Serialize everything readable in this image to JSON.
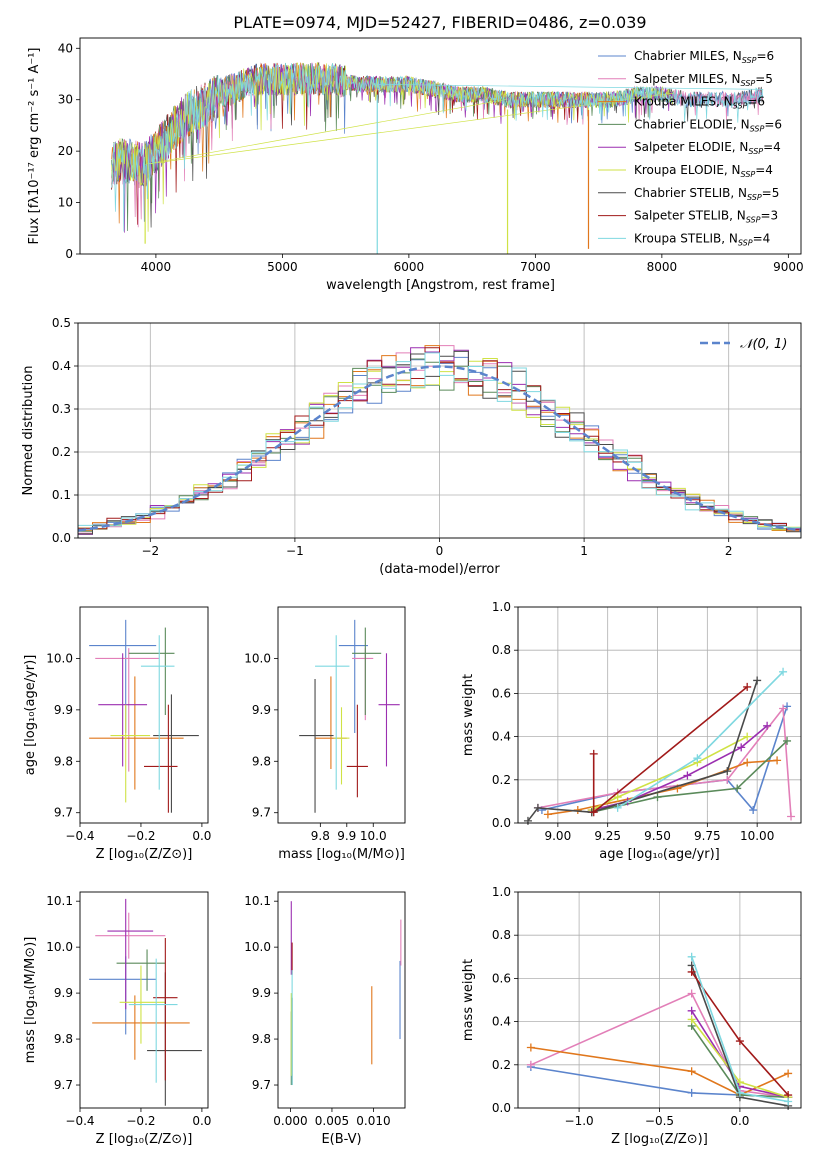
{
  "title": "PLATE=0974, MJD=52427, FIBERID=0486, z=0.039",
  "colors": [
    "#5b84cc",
    "#e27fb8",
    "#e0771c",
    "#5a8a5a",
    "#9b2fb0",
    "#cfe245",
    "#4a4a4a",
    "#a11a1a",
    "#7fd8e0"
  ],
  "legend_series": [
    {
      "pre": "Chabrier MILES, N",
      "sub": "SSP",
      "post": "=6"
    },
    {
      "pre": "Salpeter MILES, N",
      "sub": "SSP",
      "post": "=5"
    },
    {
      "pre": "Kroupa MILES, N",
      "sub": "SSP",
      "post": "=6"
    },
    {
      "pre": "Chabrier ELODIE, N",
      "sub": "SSP",
      "post": "=6"
    },
    {
      "pre": "Salpeter ELODIE, N",
      "sub": "SSP",
      "post": "=4"
    },
    {
      "pre": "Kroupa ELODIE, N",
      "sub": "SSP",
      "post": "=4"
    },
    {
      "pre": "Chabrier STELIB, N",
      "sub": "SSP",
      "post": "=5"
    },
    {
      "pre": "Salpeter STELIB, N",
      "sub": "SSP",
      "post": "=3"
    },
    {
      "pre": "Kroupa STELIB, N",
      "sub": "SSP",
      "post": "=4"
    }
  ],
  "chart_data": [
    {
      "id": "spectrum",
      "type": "line",
      "xlabel": "wavelength [Angstrom, rest frame]",
      "ylabel": "Flux [fλ10⁻¹⁷ erg cm⁻² s⁻¹ A⁻¹]",
      "xlim": [
        3400,
        9100
      ],
      "ylim": [
        0,
        42
      ],
      "xticks": [
        4000,
        5000,
        6000,
        7000,
        8000,
        9000
      ],
      "yticks": [
        0,
        10,
        20,
        30,
        40
      ],
      "continuum_x": [
        3650,
        3700,
        3800,
        3900,
        4000,
        4100,
        4200,
        4300,
        4400,
        4500,
        4600,
        4700,
        4800,
        4900,
        5000,
        5200,
        5400,
        5600,
        5800,
        6000,
        6200,
        6400,
        6600,
        6800,
        7000,
        7200,
        7400,
        7600,
        7800,
        8000,
        8200,
        8400,
        8600,
        8800
      ],
      "continuum_y": [
        17,
        18,
        18,
        17,
        20,
        23,
        26,
        28,
        29,
        31,
        32,
        33,
        34,
        34,
        34,
        34,
        34,
        33,
        33,
        33,
        32,
        31,
        31,
        30,
        30,
        30,
        30,
        30,
        31,
        31,
        30,
        30,
        30,
        31
      ],
      "series_end_x": [
        8800,
        8800,
        7420,
        8100,
        8100,
        8100,
        8800,
        7420,
        8800
      ],
      "dips": [
        {
          "x": 3915,
          "y": 2,
          "series": 5
        },
        {
          "x": 5750,
          "y": 0,
          "series": 8
        },
        {
          "x": 6780,
          "y": 0,
          "series": 5
        },
        {
          "x": 7420,
          "y": 1,
          "series": 2
        }
      ]
    },
    {
      "id": "residuals",
      "type": "histogram",
      "xlabel": "(data-model)/error",
      "ylabel": "Normed distribution",
      "xlim": [
        -2.5,
        2.5
      ],
      "ylim": [
        0,
        0.5
      ],
      "xticks": [
        -2,
        -1,
        0,
        1,
        2
      ],
      "yticks": [
        0,
        0.1,
        0.2,
        0.3,
        0.4,
        0.5
      ],
      "bin_width": 0.1,
      "gaussian_label": "𝒩(0, 1)",
      "gaussian_color": "#5b84cc"
    },
    {
      "id": "age-vs-Z",
      "type": "errorbar",
      "xlabel": "Z [log₁₀(Z/Z⊙)]",
      "ylabel": "age  [log₁₀(age/yr)]",
      "xlim": [
        -0.4,
        0.02
      ],
      "ylim": [
        9.68,
        10.1
      ],
      "xticks": [
        -0.4,
        -0.2,
        0.0
      ],
      "yticks": [
        9.7,
        9.8,
        9.9,
        10.0
      ],
      "points": [
        {
          "x": -0.25,
          "y": 10.025,
          "xerr": [
            0.12,
            0.1
          ],
          "yerr": [
            0.17,
            0.05
          ],
          "series": 0
        },
        {
          "x": -0.24,
          "y": 10.0,
          "xerr": [
            0.11,
            0.1
          ],
          "yerr": [
            0.22,
            0.02
          ],
          "series": 1
        },
        {
          "x": -0.22,
          "y": 9.845,
          "xerr": [
            0.15,
            0.16
          ],
          "yerr": [
            0.1,
            0.12
          ],
          "series": 2
        },
        {
          "x": -0.12,
          "y": 10.01,
          "xerr": [
            0.12,
            0.03
          ],
          "yerr": [
            0.12,
            0.05
          ],
          "series": 3
        },
        {
          "x": -0.26,
          "y": 9.91,
          "xerr": [
            0.08,
            0.08
          ],
          "yerr": [
            0.12,
            0.1
          ],
          "series": 4
        },
        {
          "x": -0.25,
          "y": 9.85,
          "xerr": [
            0.05,
            0.08
          ],
          "yerr": [
            0.13,
            0.06
          ],
          "series": 5
        },
        {
          "x": -0.1,
          "y": 9.85,
          "xerr": [
            0.06,
            0.09
          ],
          "yerr": [
            0.15,
            0.08
          ],
          "series": 6
        },
        {
          "x": -0.11,
          "y": 9.79,
          "xerr": [
            0.08,
            0.03
          ],
          "yerr": [
            0.09,
            0.12
          ],
          "series": 7
        },
        {
          "x": -0.14,
          "y": 9.985,
          "xerr": [
            0.06,
            0.05
          ],
          "yerr": [
            0.24,
            0.06
          ],
          "series": 8
        }
      ]
    },
    {
      "id": "age-vs-mass",
      "type": "errorbar",
      "xlabel": "mass [log₁₀(M/M⊙)]",
      "xlim": [
        9.64,
        10.12
      ],
      "ylim": [
        9.68,
        10.1
      ],
      "xticks": [
        9.8,
        9.9,
        10.0
      ],
      "yticks": [
        9.7,
        9.8,
        9.9,
        10.0
      ],
      "points": [
        {
          "x": 9.93,
          "y": 10.025,
          "xerr": [
            0.06,
            0.05
          ],
          "yerr": [
            0.17,
            0.05
          ],
          "series": 0
        },
        {
          "x": 9.97,
          "y": 10.0,
          "xerr": [
            0.05,
            0.03
          ],
          "yerr": [
            0.12,
            0.02
          ],
          "series": 1
        },
        {
          "x": 9.84,
          "y": 9.845,
          "xerr": [
            0.06,
            0.06
          ],
          "yerr": [
            0.06,
            0.12
          ],
          "series": 2
        },
        {
          "x": 9.97,
          "y": 10.01,
          "xerr": [
            0.05,
            0.06
          ],
          "yerr": [
            0.12,
            0.05
          ],
          "series": 3
        },
        {
          "x": 10.05,
          "y": 9.91,
          "xerr": [
            0.03,
            0.05
          ],
          "yerr": [
            0.12,
            0.1
          ],
          "series": 4
        },
        {
          "x": 9.88,
          "y": 9.845,
          "xerr": [
            0.03,
            0.03
          ],
          "yerr": [
            0.09,
            0.06
          ],
          "series": 5
        },
        {
          "x": 9.78,
          "y": 9.85,
          "xerr": [
            0.06,
            0.07
          ],
          "yerr": [
            0.15,
            0.11
          ],
          "series": 6
        },
        {
          "x": 9.94,
          "y": 9.79,
          "xerr": [
            0.04,
            0.04
          ],
          "yerr": [
            0.06,
            0.12
          ],
          "series": 7
        },
        {
          "x": 9.86,
          "y": 9.985,
          "xerr": [
            0.08,
            0.05
          ],
          "yerr": [
            0.24,
            0.06
          ],
          "series": 8
        }
      ]
    },
    {
      "id": "weight-vs-age",
      "type": "line",
      "xlabel": "age  [log₁₀(age/yr)]",
      "ylabel": "mass weight",
      "xlim": [
        8.8,
        10.22
      ],
      "ylim": [
        0,
        1
      ],
      "xticks": [
        9.0,
        9.25,
        9.5,
        9.75,
        10.0
      ],
      "yticks": [
        0.0,
        0.2,
        0.4,
        0.6,
        0.8,
        1.0
      ],
      "series": [
        {
          "series": 0,
          "x": [
            8.92,
            9.3,
            9.85,
            9.98,
            10.15
          ],
          "y": [
            0.06,
            0.14,
            0.2,
            0.06,
            0.54
          ]
        },
        {
          "series": 1,
          "x": [
            8.9,
            9.3,
            9.85,
            10.13,
            10.17
          ],
          "y": [
            0.07,
            0.14,
            0.2,
            0.53,
            0.03
          ]
        },
        {
          "series": 2,
          "x": [
            8.95,
            9.1,
            9.6,
            9.95,
            10.1
          ],
          "y": [
            0.04,
            0.06,
            0.16,
            0.28,
            0.29
          ]
        },
        {
          "series": 3,
          "x": [
            9.17,
            9.5,
            9.9,
            10.15
          ],
          "y": [
            0.05,
            0.12,
            0.16,
            0.38
          ]
        },
        {
          "series": 4,
          "x": [
            9.17,
            9.35,
            9.65,
            9.92,
            10.05
          ],
          "y": [
            0.06,
            0.1,
            0.22,
            0.35,
            0.45
          ]
        },
        {
          "series": 5,
          "x": [
            9.17,
            9.3,
            9.7,
            9.95
          ],
          "y": [
            0.06,
            0.12,
            0.28,
            0.4
          ]
        },
        {
          "series": 6,
          "x": [
            8.85,
            8.9,
            9.17,
            9.85,
            10.0
          ],
          "y": [
            0.01,
            0.07,
            0.05,
            0.24,
            0.66
          ]
        },
        {
          "series": 7,
          "x": [
            9.18,
            9.18,
            9.95
          ],
          "y": [
            0.32,
            0.05,
            0.63
          ]
        },
        {
          "series": 8,
          "x": [
            9.3,
            9.7,
            10.13
          ],
          "y": [
            0.07,
            0.3,
            0.7
          ]
        }
      ]
    },
    {
      "id": "mass-vs-Z",
      "type": "errorbar",
      "xlabel": "Z [log₁₀(Z/Z⊙)]",
      "ylabel": "mass [log₁₀(M/M⊙)]",
      "xlim": [
        -0.4,
        0.02
      ],
      "ylim": [
        9.65,
        10.12
      ],
      "xticks": [
        -0.4,
        -0.2,
        0.0
      ],
      "yticks": [
        9.7,
        9.8,
        9.9,
        10.0,
        10.1
      ],
      "points": [
        {
          "x": -0.25,
          "y": 9.93,
          "xerr": [
            0.12,
            0.1
          ],
          "yerr": [
            0.12,
            0.05
          ],
          "series": 0
        },
        {
          "x": -0.24,
          "y": 10.025,
          "xerr": [
            0.11,
            0.12
          ],
          "yerr": [
            0.05,
            0.05
          ],
          "series": 1
        },
        {
          "x": -0.22,
          "y": 9.835,
          "xerr": [
            0.14,
            0.18
          ],
          "yerr": [
            0.08,
            0.06
          ],
          "series": 2
        },
        {
          "x": -0.18,
          "y": 9.965,
          "xerr": [
            0.1,
            0.06
          ],
          "yerr": [
            0.06,
            0.03
          ],
          "series": 3
        },
        {
          "x": -0.25,
          "y": 10.035,
          "xerr": [
            0.06,
            0.09
          ],
          "yerr": [
            0.17,
            0.07
          ],
          "series": 4
        },
        {
          "x": -0.2,
          "y": 9.88,
          "xerr": [
            0.07,
            0.08
          ],
          "yerr": [
            0.09,
            0.08
          ],
          "series": 5
        },
        {
          "x": -0.12,
          "y": 9.775,
          "xerr": [
            0.06,
            0.12
          ],
          "yerr": [
            0.12,
            0.17
          ],
          "series": 6
        },
        {
          "x": -0.12,
          "y": 9.89,
          "xerr": [
            0.04,
            0.04
          ],
          "yerr": [
            0.18,
            0.13
          ],
          "series": 7
        },
        {
          "x": -0.15,
          "y": 9.875,
          "xerr": [
            0.09,
            0.07
          ],
          "yerr": [
            0.17,
            0.1
          ],
          "series": 8
        }
      ]
    },
    {
      "id": "mass-vs-ebv",
      "type": "errorbar",
      "xlabel": "E(B-V)",
      "xlim": [
        -0.0015,
        0.0138
      ],
      "ylim": [
        9.65,
        10.12
      ],
      "xticks": [
        0.0,
        0.005,
        0.01
      ],
      "yticks": [
        9.7,
        9.8,
        9.9,
        10.0,
        10.1
      ],
      "points": [
        {
          "x": 0.0132,
          "y": 9.89,
          "xerr": [
            0,
            0
          ],
          "yerr": [
            0.09,
            0.08
          ],
          "series": 0
        },
        {
          "x": 0.0133,
          "y": 10.0,
          "xerr": [
            0,
            0
          ],
          "yerr": [
            0.04,
            0.06
          ],
          "series": 1
        },
        {
          "x": 0.0098,
          "y": 9.835,
          "xerr": [
            0,
            0
          ],
          "yerr": [
            0.09,
            0.08
          ],
          "series": 2
        },
        {
          "x": 0.0001,
          "y": 9.8,
          "xerr": [
            0,
            0
          ],
          "yerr": [
            0.1,
            0.06
          ],
          "series": 3
        },
        {
          "x": 0.0001,
          "y": 10.02,
          "xerr": [
            0,
            0
          ],
          "yerr": [
            0.08,
            0.08
          ],
          "series": 4
        },
        {
          "x": 0.0001,
          "y": 9.8,
          "xerr": [
            0,
            0
          ],
          "yerr": [
            0.08,
            0.1
          ],
          "series": 5
        },
        {
          "x": 0.0002,
          "y": 9.82,
          "xerr": [
            0,
            0
          ],
          "yerr": [
            0.12,
            0.07
          ],
          "series": 6
        },
        {
          "x": 0.0002,
          "y": 9.98,
          "xerr": [
            0,
            0
          ],
          "yerr": [
            0.04,
            0.03
          ],
          "series": 7
        },
        {
          "x": 0.0002,
          "y": 9.86,
          "xerr": [
            0,
            0
          ],
          "yerr": [
            0.16,
            0.09
          ],
          "series": 8
        }
      ]
    },
    {
      "id": "weight-vs-Z",
      "type": "line",
      "xlabel": "Z [log₁₀(Z/Z⊙)]",
      "ylabel": "mass weight",
      "xlim": [
        -1.38,
        0.38
      ],
      "ylim": [
        0,
        1
      ],
      "xticks": [
        -1.0,
        -0.5,
        0.0
      ],
      "yticks": [
        0.0,
        0.2,
        0.4,
        0.6,
        0.8,
        1.0
      ],
      "series": [
        {
          "series": 0,
          "x": [
            -1.3,
            -0.3,
            0.0,
            0.3
          ],
          "y": [
            0.19,
            0.07,
            0.06,
            0.05
          ]
        },
        {
          "series": 1,
          "x": [
            -1.3,
            -0.3,
            0.0,
            0.3
          ],
          "y": [
            0.2,
            0.53,
            0.08,
            0.05
          ]
        },
        {
          "series": 2,
          "x": [
            -1.3,
            -0.3,
            0.0,
            0.3
          ],
          "y": [
            0.28,
            0.17,
            0.06,
            0.16
          ]
        },
        {
          "series": 3,
          "x": [
            -0.3,
            0.0,
            0.3
          ],
          "y": [
            0.38,
            0.06,
            0.05
          ]
        },
        {
          "series": 4,
          "x": [
            -0.3,
            0.0,
            0.3
          ],
          "y": [
            0.45,
            0.1,
            0.05
          ]
        },
        {
          "series": 5,
          "x": [
            -0.3,
            0.0,
            0.3
          ],
          "y": [
            0.41,
            0.12,
            0.05
          ]
        },
        {
          "series": 6,
          "x": [
            -0.3,
            0.0,
            0.3
          ],
          "y": [
            0.66,
            0.05,
            0.01
          ]
        },
        {
          "series": 7,
          "x": [
            -0.3,
            0.0,
            0.3
          ],
          "y": [
            0.63,
            0.31,
            0.06
          ]
        },
        {
          "series": 8,
          "x": [
            -0.3,
            0.0,
            0.3
          ],
          "y": [
            0.7,
            0.07,
            0.03
          ]
        }
      ]
    }
  ]
}
